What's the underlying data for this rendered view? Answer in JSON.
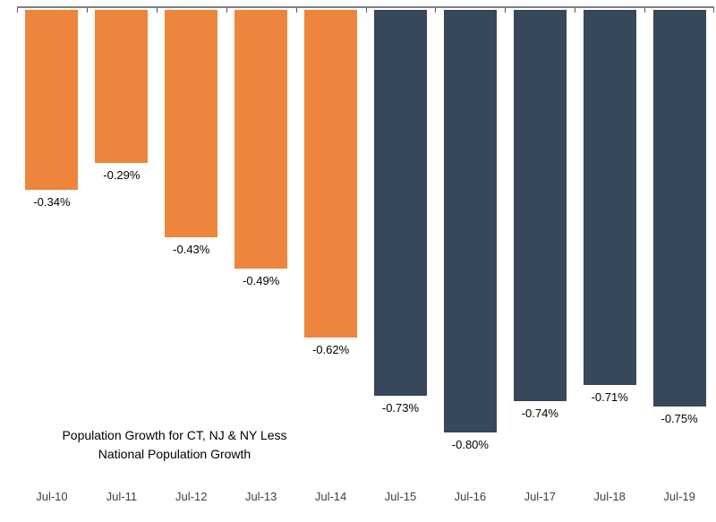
{
  "chart_data": {
    "type": "bar",
    "title": "Population Growth for CT, NJ & NY Less National Population Growth",
    "title_lines": [
      "Population Growth for CT, NJ & NY Less",
      "National Population Growth"
    ],
    "categories": [
      "Jul-10",
      "Jul-11",
      "Jul-12",
      "Jul-13",
      "Jul-14",
      "Jul-15",
      "Jul-16",
      "Jul-17",
      "Jul-18",
      "Jul-19"
    ],
    "values": [
      -0.34,
      -0.29,
      -0.43,
      -0.49,
      -0.62,
      -0.73,
      -0.8,
      -0.74,
      -0.71,
      -0.75
    ],
    "data_labels": [
      "-0.34%",
      "-0.29%",
      "-0.43%",
      "-0.49%",
      "-0.62%",
      "-0.73%",
      "-0.80%",
      "-0.74%",
      "-0.71%",
      "-0.75%"
    ],
    "bar_colors": [
      "#ED863C",
      "#ED863C",
      "#ED863C",
      "#ED863C",
      "#ED863C",
      "#36485A",
      "#36485A",
      "#36485A",
      "#36485A",
      "#36485A"
    ],
    "xlabel": "",
    "ylabel": "",
    "ylim": [
      -0.85,
      0
    ],
    "grid": false,
    "legend": "none",
    "axis_position": "top",
    "colors": {
      "orange_series": "#ED863C",
      "slate_series": "#36485A",
      "axis_line": "#808080",
      "tick": "#595959",
      "data_label": "#000000",
      "axis_label": "#404040"
    }
  }
}
